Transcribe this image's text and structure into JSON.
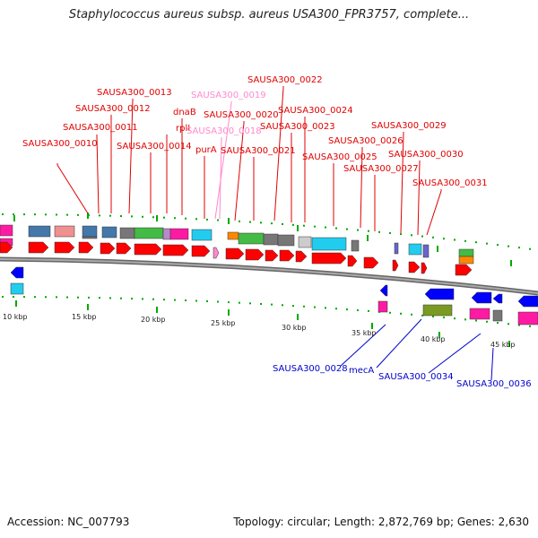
{
  "title": "Staphylococcus aureus subsp. aureus USA300_FPR3757, complete...",
  "footer": {
    "accession": "Accession: NC_007793",
    "stats": "Topology: circular; Length: 2,872,769 bp; Genes: 2,630"
  },
  "colors": {
    "forward_cds": "#ff0000",
    "label_red": "#e00000",
    "label_pink": "#ff88cc",
    "label_blue": "#0000cc",
    "backbone": "#888888",
    "tick": "#00aa00"
  },
  "scale": {
    "ticks": [
      "10 kbp",
      "15 kbp",
      "20 kbp",
      "25 kbp",
      "30 kbp",
      "35 kbp",
      "40 kbp",
      "45 kbp"
    ]
  },
  "gene_labels_top": [
    {
      "name": "SAUSA300_0010",
      "color": "red"
    },
    {
      "name": "SAUSA300_0011",
      "color": "red"
    },
    {
      "name": "SAUSA300_0012",
      "color": "red"
    },
    {
      "name": "SAUSA300_0013",
      "color": "red"
    },
    {
      "name": "SAUSA300_0014",
      "color": "red"
    },
    {
      "name": "rplI",
      "color": "red"
    },
    {
      "name": "dnaB",
      "color": "red"
    },
    {
      "name": "SAUSA300_0018",
      "color": "pink"
    },
    {
      "name": "SAUSA300_0019",
      "color": "pink"
    },
    {
      "name": "purA",
      "color": "red"
    },
    {
      "name": "SAUSA300_0020",
      "color": "red"
    },
    {
      "name": "SAUSA300_0021",
      "color": "red"
    },
    {
      "name": "SAUSA300_0022",
      "color": "red"
    },
    {
      "name": "SAUSA300_0023",
      "color": "red"
    },
    {
      "name": "SAUSA300_0024",
      "color": "red"
    },
    {
      "name": "SAUSA300_0025",
      "color": "red"
    },
    {
      "name": "SAUSA300_0026",
      "color": "red"
    },
    {
      "name": "SAUSA300_0027",
      "color": "red"
    },
    {
      "name": "SAUSA300_0029",
      "color": "red"
    },
    {
      "name": "SAUSA300_0030",
      "color": "red"
    },
    {
      "name": "SAUSA300_0031",
      "color": "red"
    }
  ],
  "gene_labels_bottom": [
    {
      "name": "SAUSA300_0028",
      "color": "blue"
    },
    {
      "name": "mecA",
      "color": "blue"
    },
    {
      "name": "SAUSA300_0034",
      "color": "blue"
    },
    {
      "name": "SAUSA300_0036",
      "color": "blue"
    }
  ]
}
